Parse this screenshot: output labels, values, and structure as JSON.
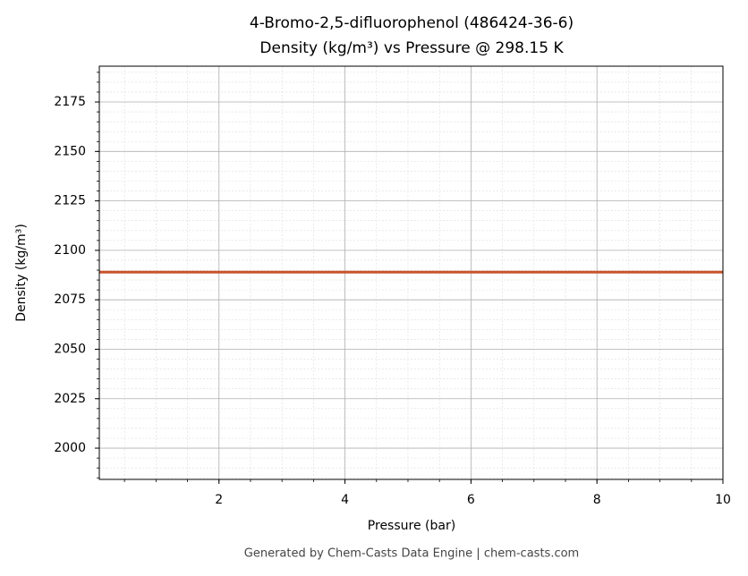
{
  "chart_data": {
    "type": "line",
    "title": "4-Bromo-2,5-difluorophenol (486424-36-6)",
    "subtitle": "Density (kg/m³) vs Pressure @ 298.15 K",
    "x_label": "Pressure (bar)",
    "y_label": "Density (kg/m³)",
    "footer": "Generated by Chem-Casts Data Engine | chem-casts.com",
    "x": [
      0.1,
      10
    ],
    "series": [
      {
        "name": "Density",
        "color": "#c8552b",
        "values": [
          2089,
          2089
        ]
      }
    ],
    "xlim": [
      0.1,
      10
    ],
    "xticks": [
      2,
      4,
      6,
      8,
      10
    ],
    "ylim": [
      1984.2,
      2193.1
    ],
    "yticks": [
      2000,
      2025,
      2050,
      2075,
      2100,
      2125,
      2150,
      2175
    ],
    "grid": true
  }
}
